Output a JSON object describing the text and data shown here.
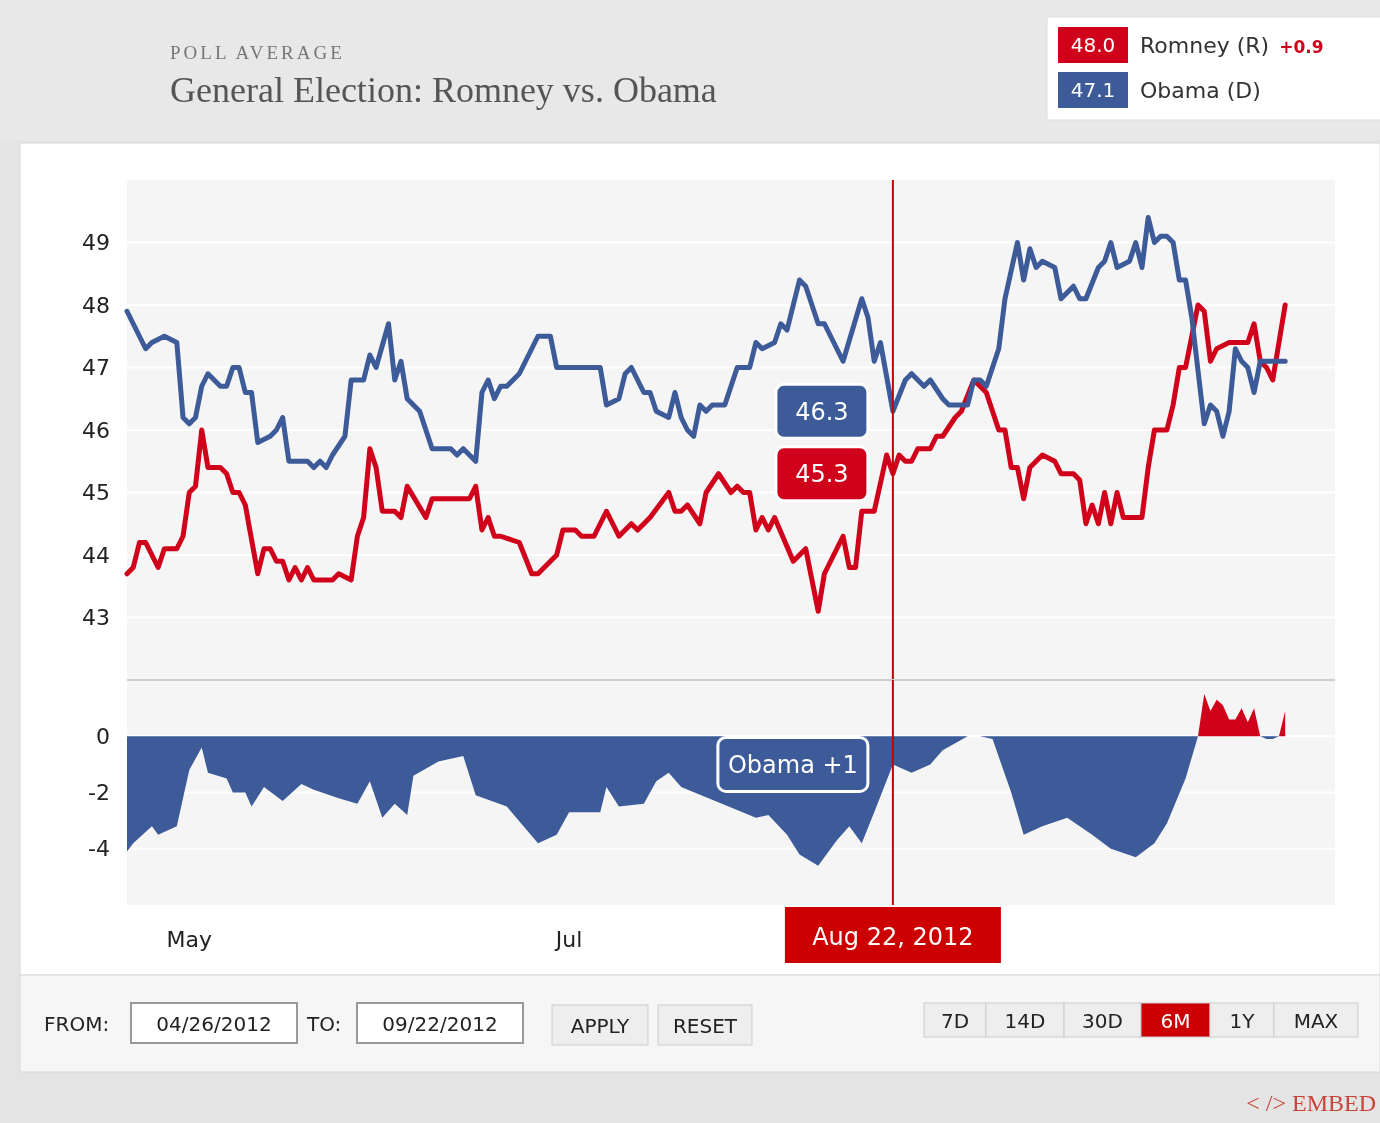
{
  "chart_data": [
    {
      "type": "line",
      "title": "General Election: Romney vs. Obama",
      "subtitle": "POLL AVERAGE",
      "legend": "top right",
      "grid": "y",
      "tick_labels": "y",
      "xlim": [
        "2012-04-21",
        "2012-11-01"
      ],
      "ylim": [
        42,
        50
      ],
      "yticks": [
        43,
        44,
        45,
        46,
        47,
        48,
        49
      ],
      "ref_lines": [
        {
          "axis": "x",
          "value": "2012-08-22",
          "color": "#cc0000"
        }
      ],
      "annotations": [
        "48.0",
        "+0.9",
        "47.1",
        {
          "text": "46.3",
          "x": "2012-08-22",
          "y": 46.3
        },
        {
          "text": "45.3",
          "x": "2012-08-22",
          "y": 45.3
        }
      ],
      "series": [
        {
          "name": "Romney (R)",
          "color": "#d0021b",
          "x": [
            "2012-04-21",
            "2012-04-22",
            "2012-04-23",
            "2012-04-24",
            "2012-04-26",
            "2012-04-27",
            "2012-04-29",
            "2012-04-30",
            "2012-05-01",
            "2012-05-02",
            "2012-05-03",
            "2012-05-04",
            "2012-05-06",
            "2012-05-07",
            "2012-05-08",
            "2012-05-09",
            "2012-05-10",
            "2012-05-12",
            "2012-05-13",
            "2012-05-14",
            "2012-05-15",
            "2012-05-16",
            "2012-05-17",
            "2012-05-18",
            "2012-05-19",
            "2012-05-20",
            "2012-05-21",
            "2012-05-24",
            "2012-05-25",
            "2012-05-27",
            "2012-05-28",
            "2012-05-29",
            "2012-05-30",
            "2012-05-31",
            "2012-06-01",
            "2012-06-03",
            "2012-06-04",
            "2012-06-05",
            "2012-06-08",
            "2012-06-09",
            "2012-06-15",
            "2012-06-16",
            "2012-06-17",
            "2012-06-18",
            "2012-06-19",
            "2012-06-20",
            "2012-06-23",
            "2012-06-25",
            "2012-06-26",
            "2012-06-29",
            "2012-06-30",
            "2012-07-02",
            "2012-07-03",
            "2012-07-05",
            "2012-07-07",
            "2012-07-09",
            "2012-07-11",
            "2012-07-12",
            "2012-07-14",
            "2012-07-17",
            "2012-07-18",
            "2012-07-19",
            "2012-07-20",
            "2012-07-22",
            "2012-07-23",
            "2012-07-25",
            "2012-07-27",
            "2012-07-28",
            "2012-07-29",
            "2012-07-30",
            "2012-07-31",
            "2012-08-01",
            "2012-08-02",
            "2012-08-03",
            "2012-08-06",
            "2012-08-08",
            "2012-08-10",
            "2012-08-11",
            "2012-08-14",
            "2012-08-15",
            "2012-08-16",
            "2012-08-17",
            "2012-08-18",
            "2012-08-19",
            "2012-08-21",
            "2012-08-22",
            "2012-08-23",
            "2012-08-24",
            "2012-08-25",
            "2012-08-26",
            "2012-08-28",
            "2012-08-29",
            "2012-08-30",
            "2012-09-01",
            "2012-09-02",
            "2012-09-04",
            "2012-09-06",
            "2012-09-08",
            "2012-09-09",
            "2012-09-10",
            "2012-09-11",
            "2012-09-12",
            "2012-09-13",
            "2012-09-15",
            "2012-09-17",
            "2012-09-18",
            "2012-09-20",
            "2012-09-21",
            "2012-09-22",
            "2012-09-23",
            "2012-09-24",
            "2012-09-25",
            "2012-09-26",
            "2012-09-27",
            "2012-09-28",
            "2012-10-01",
            "2012-10-02",
            "2012-10-03",
            "2012-10-05",
            "2012-10-06",
            "2012-10-07",
            "2012-10-08",
            "2012-10-10",
            "2012-10-11",
            "2012-10-12",
            "2012-10-13",
            "2012-10-15",
            "2012-10-18",
            "2012-10-19",
            "2012-10-20",
            "2012-10-21",
            "2012-10-22",
            "2012-10-24"
          ],
          "values": [
            43.7,
            43.8,
            44.2,
            44.2,
            43.8,
            44.1,
            44.1,
            44.3,
            45.0,
            45.1,
            46.0,
            45.4,
            45.4,
            45.3,
            45.0,
            45.0,
            44.8,
            43.7,
            44.1,
            44.1,
            43.9,
            43.9,
            43.6,
            43.8,
            43.6,
            43.8,
            43.6,
            43.6,
            43.7,
            43.6,
            44.3,
            44.6,
            45.7,
            45.4,
            44.7,
            44.7,
            44.6,
            45.1,
            44.6,
            44.9,
            44.9,
            45.1,
            44.4,
            44.6,
            44.3,
            44.3,
            44.2,
            43.7,
            43.7,
            44.0,
            44.4,
            44.4,
            44.3,
            44.3,
            44.7,
            44.3,
            44.5,
            44.4,
            44.6,
            45.0,
            44.7,
            44.7,
            44.8,
            44.5,
            45.0,
            45.3,
            45.0,
            45.1,
            45.0,
            45.0,
            44.4,
            44.6,
            44.4,
            44.6,
            43.9,
            44.1,
            43.1,
            43.7,
            44.3,
            43.8,
            43.8,
            44.7,
            44.7,
            44.7,
            45.6,
            45.3,
            45.6,
            45.5,
            45.5,
            45.7,
            45.7,
            45.9,
            45.9,
            46.2,
            46.3,
            46.8,
            46.6,
            46.0,
            46.0,
            45.4,
            45.4,
            44.9,
            45.4,
            45.6,
            45.5,
            45.3,
            45.3,
            45.2,
            44.5,
            44.8,
            44.5,
            45.0,
            44.5,
            45.0,
            44.6,
            44.6,
            45.4,
            46.0,
            46.0,
            46.4,
            47.0,
            47.0,
            48.0,
            47.9,
            47.1,
            47.3,
            47.4,
            47.4,
            47.7,
            47.1,
            47.0,
            46.8,
            48.0
          ]
        },
        {
          "name": "Obama (D)",
          "color": "#3d5a99",
          "x": [
            "2012-04-21",
            "2012-04-24",
            "2012-04-25",
            "2012-04-27",
            "2012-04-29",
            "2012-04-30",
            "2012-05-01",
            "2012-05-02",
            "2012-05-03",
            "2012-05-04",
            "2012-05-06",
            "2012-05-07",
            "2012-05-08",
            "2012-05-09",
            "2012-05-10",
            "2012-05-11",
            "2012-05-12",
            "2012-05-14",
            "2012-05-15",
            "2012-05-16",
            "2012-05-17",
            "2012-05-20",
            "2012-05-21",
            "2012-05-22",
            "2012-05-23",
            "2012-05-24",
            "2012-05-26",
            "2012-05-27",
            "2012-05-29",
            "2012-05-30",
            "2012-05-31",
            "2012-06-02",
            "2012-06-03",
            "2012-06-04",
            "2012-06-05",
            "2012-06-07",
            "2012-06-09",
            "2012-06-12",
            "2012-06-13",
            "2012-06-14",
            "2012-06-16",
            "2012-06-17",
            "2012-06-18",
            "2012-06-19",
            "2012-06-20",
            "2012-06-21",
            "2012-06-22",
            "2012-06-23",
            "2012-06-25",
            "2012-06-26",
            "2012-06-28",
            "2012-06-29",
            "2012-07-06",
            "2012-07-07",
            "2012-07-09",
            "2012-07-10",
            "2012-07-11",
            "2012-07-13",
            "2012-07-14",
            "2012-07-15",
            "2012-07-17",
            "2012-07-18",
            "2012-07-19",
            "2012-07-20",
            "2012-07-21",
            "2012-07-22",
            "2012-07-23",
            "2012-07-24",
            "2012-07-26",
            "2012-07-28",
            "2012-07-30",
            "2012-07-31",
            "2012-08-01",
            "2012-08-03",
            "2012-08-04",
            "2012-08-05",
            "2012-08-07",
            "2012-08-08",
            "2012-08-10",
            "2012-08-11",
            "2012-08-14",
            "2012-08-17",
            "2012-08-18",
            "2012-08-19",
            "2012-08-20",
            "2012-08-22",
            "2012-08-24",
            "2012-08-25",
            "2012-08-27",
            "2012-08-28",
            "2012-08-30",
            "2012-08-31",
            "2012-09-03",
            "2012-09-04",
            "2012-09-05",
            "2012-09-06",
            "2012-09-08",
            "2012-09-09",
            "2012-09-11",
            "2012-09-12",
            "2012-09-13",
            "2012-09-14",
            "2012-09-15",
            "2012-09-17",
            "2012-09-18",
            "2012-09-20",
            "2012-09-21",
            "2012-09-22",
            "2012-09-24",
            "2012-09-25",
            "2012-09-26",
            "2012-09-27",
            "2012-09-29",
            "2012-09-30",
            "2012-10-01",
            "2012-10-02",
            "2012-10-03",
            "2012-10-04",
            "2012-10-05",
            "2012-10-06",
            "2012-10-07",
            "2012-10-08",
            "2012-10-09",
            "2012-10-11",
            "2012-10-12",
            "2012-10-13",
            "2012-10-14",
            "2012-10-15",
            "2012-10-16",
            "2012-10-17",
            "2012-10-18",
            "2012-10-19",
            "2012-10-20",
            "2012-10-23",
            "2012-10-24"
          ],
          "values": [
            47.9,
            47.3,
            47.4,
            47.5,
            47.4,
            46.2,
            46.1,
            46.2,
            46.7,
            46.9,
            46.7,
            46.7,
            47.0,
            47.0,
            46.6,
            46.6,
            45.8,
            45.9,
            46.0,
            46.2,
            45.5,
            45.5,
            45.4,
            45.5,
            45.4,
            45.6,
            45.9,
            46.8,
            46.8,
            47.2,
            47.0,
            47.7,
            46.8,
            47.1,
            46.5,
            46.3,
            45.7,
            45.7,
            45.6,
            45.7,
            45.5,
            46.6,
            46.8,
            46.5,
            46.7,
            46.7,
            46.8,
            46.9,
            47.3,
            47.5,
            47.5,
            47.0,
            47.0,
            46.4,
            46.5,
            46.9,
            47.0,
            46.6,
            46.6,
            46.3,
            46.2,
            46.6,
            46.2,
            46.0,
            45.9,
            46.4,
            46.3,
            46.4,
            46.4,
            47.0,
            47.0,
            47.4,
            47.3,
            47.4,
            47.7,
            47.6,
            48.4,
            48.3,
            47.7,
            47.7,
            47.1,
            48.1,
            47.8,
            47.1,
            47.4,
            46.3,
            46.8,
            46.9,
            46.7,
            46.8,
            46.5,
            46.4,
            46.4,
            46.8,
            46.8,
            46.7,
            47.3,
            48.1,
            49.0,
            48.4,
            48.9,
            48.6,
            48.7,
            48.6,
            48.1,
            48.3,
            48.1,
            48.1,
            48.6,
            48.7,
            49.0,
            48.6,
            48.7,
            49.0,
            48.6,
            49.4,
            49.0,
            49.1,
            49.1,
            49.0,
            48.4,
            48.4,
            47.8,
            46.1,
            46.4,
            46.3,
            45.9,
            46.3,
            47.3,
            47.1,
            47.0,
            46.6,
            47.1,
            47.1,
            47.1
          ]
        }
      ]
    },
    {
      "type": "area",
      "grid": "y",
      "xlim": [
        "2012-04-21",
        "2012-11-01"
      ],
      "ylim": [
        -6,
        2
      ],
      "yticks": [
        0,
        -2,
        -4
      ],
      "xticks": [
        {
          "value": "2012-05-01",
          "label": "May"
        },
        {
          "value": "2012-07-01",
          "label": "Jul"
        }
      ],
      "ref_lines": [
        {
          "axis": "x",
          "value": "2012-08-22",
          "label": "Aug 22, 2012",
          "color": "#cc0000"
        }
      ],
      "annotations": [
        {
          "text": "Obama +1",
          "x": "2012-08-22",
          "y": -1
        },
        "FROM:",
        "04/26/2012",
        "TO:",
        "09/22/2012",
        "APPLY",
        "RESET",
        "7D",
        "14D",
        "30D",
        "6M",
        "1Y",
        "MAX",
        "< /> EMBED"
      ],
      "series": [
        {
          "color": "#3d5a99",
          "x": [
            "2012-04-21",
            "2012-04-22",
            "2012-04-25",
            "2012-04-26",
            "2012-04-29",
            "2012-05-01",
            "2012-05-03",
            "2012-05-04",
            "2012-05-07",
            "2012-05-08",
            "2012-05-10",
            "2012-05-11",
            "2012-05-13",
            "2012-05-16",
            "2012-05-19",
            "2012-05-21",
            "2012-05-25",
            "2012-05-28",
            "2012-05-30",
            "2012-06-01",
            "2012-06-03",
            "2012-06-05",
            "2012-06-06",
            "2012-06-10",
            "2012-06-14",
            "2012-06-16",
            "2012-06-21",
            "2012-06-26",
            "2012-06-29",
            "2012-07-01",
            "2012-07-06",
            "2012-07-07",
            "2012-07-09",
            "2012-07-13",
            "2012-07-15",
            "2012-07-17",
            "2012-07-19",
            "2012-07-31",
            "2012-08-02",
            "2012-08-05",
            "2012-08-07",
            "2012-08-10",
            "2012-08-13",
            "2012-08-15",
            "2012-08-17",
            "2012-08-19",
            "2012-08-22",
            "2012-08-25",
            "2012-08-28",
            "2012-08-30",
            "2012-09-03",
            "2012-09-05",
            "2012-09-07",
            "2012-09-10",
            "2012-09-12",
            "2012-09-15",
            "2012-09-19",
            "2012-09-23",
            "2012-09-26",
            "2012-09-30",
            "2012-10-03",
            "2012-10-05",
            "2012-10-08",
            "2012-10-10",
            "2012-10-11",
            "2012-10-20",
            "2012-10-21",
            "2012-10-22",
            "2012-10-23"
          ],
          "values": [
            -4.1,
            -3.8,
            -3.2,
            -3.5,
            -3.2,
            -1.2,
            -0.4,
            -1.3,
            -1.5,
            -2.0,
            -2.0,
            -2.5,
            -1.8,
            -2.3,
            -1.7,
            -1.9,
            -2.2,
            -2.4,
            -1.6,
            -2.9,
            -2.4,
            -2.8,
            -1.4,
            -0.9,
            -0.7,
            -2.1,
            -2.5,
            -3.8,
            -3.5,
            -2.7,
            -2.7,
            -1.8,
            -2.5,
            -2.4,
            -1.6,
            -1.3,
            -1.8,
            -2.9,
            -2.8,
            -3.5,
            -4.2,
            -4.6,
            -3.7,
            -3.2,
            -3.8,
            -2.7,
            -1.0,
            -1.3,
            -1.0,
            -0.5,
            0,
            0,
            -0.1,
            -2.0,
            -3.5,
            -3.2,
            -2.9,
            -3.5,
            -4.0,
            -4.3,
            -3.8,
            -3.1,
            -1.5,
            0,
            null,
            0,
            -0.1,
            -0.1,
            0
          ]
        },
        {
          "color": "#d0021b",
          "x": [
            "2012-10-10",
            "2012-10-11",
            "2012-10-12",
            "2012-10-13",
            "2012-10-14",
            "2012-10-15",
            "2012-10-16",
            "2012-10-17",
            "2012-10-18",
            "2012-10-19",
            "2012-10-20",
            "2012-10-21",
            "2012-10-23",
            "2012-10-24"
          ],
          "values": [
            0,
            1.5,
            0.9,
            1.3,
            1.1,
            0.6,
            0.6,
            1.0,
            0.5,
            1.0,
            0,
            null,
            0,
            0.9
          ]
        }
      ]
    }
  ]
}
